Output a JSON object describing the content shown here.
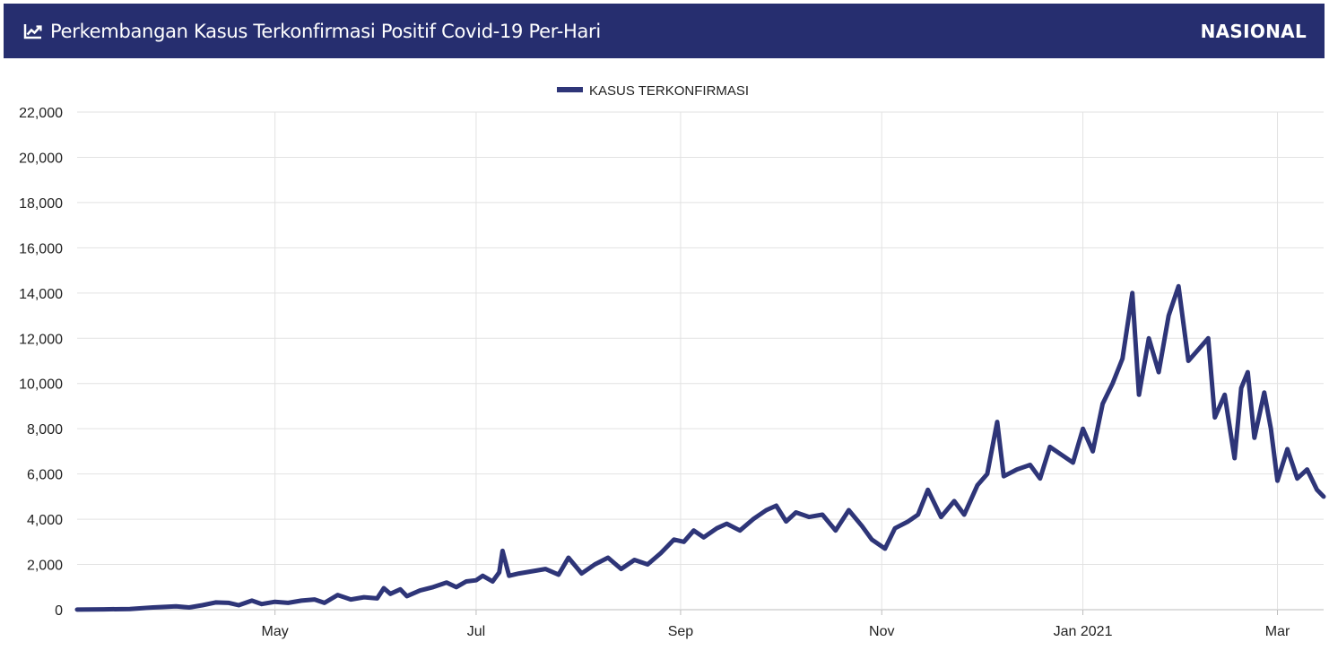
{
  "header": {
    "title": "Perkembangan Kasus Terkonfirmasi Positif Covid-19 Per-Hari",
    "scope": "NASIONAL",
    "icon": "line-chart-icon"
  },
  "chart_data": {
    "type": "line",
    "title": "Perkembangan Kasus Terkonfirmasi Positif Covid-19 Per-Hari",
    "xlabel": "",
    "ylabel": "",
    "legend_position": "top-center",
    "grid": true,
    "series_color": "#2e3578",
    "x_range": [
      "2020-03-02",
      "2021-03-15"
    ],
    "ylim": [
      0,
      22000
    ],
    "y_ticks": [
      "0",
      "2,000",
      "4,000",
      "6,000",
      "8,000",
      "10,000",
      "12,000",
      "14,000",
      "16,000",
      "18,000",
      "20,000",
      "22,000"
    ],
    "x_ticks": [
      {
        "date": "2020-05-01",
        "label": "May"
      },
      {
        "date": "2020-07-01",
        "label": "Jul"
      },
      {
        "date": "2020-09-01",
        "label": "Sep"
      },
      {
        "date": "2020-11-01",
        "label": "Nov"
      },
      {
        "date": "2021-01-01",
        "label": "Jan 2021"
      },
      {
        "date": "2021-03-01",
        "label": "Mar"
      }
    ],
    "series": [
      {
        "name": "KASUS TERKONFIRMASI",
        "points": [
          [
            "2020-03-02",
            2
          ],
          [
            "2020-03-10",
            15
          ],
          [
            "2020-03-18",
            30
          ],
          [
            "2020-03-25",
            100
          ],
          [
            "2020-04-01",
            150
          ],
          [
            "2020-04-05",
            100
          ],
          [
            "2020-04-09",
            200
          ],
          [
            "2020-04-13",
            320
          ],
          [
            "2020-04-17",
            300
          ],
          [
            "2020-04-20",
            200
          ],
          [
            "2020-04-24",
            400
          ],
          [
            "2020-04-27",
            250
          ],
          [
            "2020-05-01",
            350
          ],
          [
            "2020-05-05",
            300
          ],
          [
            "2020-05-09",
            400
          ],
          [
            "2020-05-13",
            450
          ],
          [
            "2020-05-16",
            300
          ],
          [
            "2020-05-20",
            650
          ],
          [
            "2020-05-24",
            450
          ],
          [
            "2020-05-28",
            550
          ],
          [
            "2020-06-01",
            500
          ],
          [
            "2020-06-03",
            950
          ],
          [
            "2020-06-05",
            700
          ],
          [
            "2020-06-08",
            900
          ],
          [
            "2020-06-10",
            600
          ],
          [
            "2020-06-14",
            850
          ],
          [
            "2020-06-18",
            1000
          ],
          [
            "2020-06-22",
            1200
          ],
          [
            "2020-06-25",
            1000
          ],
          [
            "2020-06-28",
            1250
          ],
          [
            "2020-07-01",
            1300
          ],
          [
            "2020-07-03",
            1500
          ],
          [
            "2020-07-06",
            1250
          ],
          [
            "2020-07-08",
            1650
          ],
          [
            "2020-07-09",
            2600
          ],
          [
            "2020-07-11",
            1500
          ],
          [
            "2020-07-14",
            1600
          ],
          [
            "2020-07-18",
            1700
          ],
          [
            "2020-07-22",
            1800
          ],
          [
            "2020-07-26",
            1550
          ],
          [
            "2020-07-29",
            2300
          ],
          [
            "2020-08-02",
            1600
          ],
          [
            "2020-08-06",
            2000
          ],
          [
            "2020-08-10",
            2300
          ],
          [
            "2020-08-14",
            1800
          ],
          [
            "2020-08-18",
            2200
          ],
          [
            "2020-08-22",
            2000
          ],
          [
            "2020-08-26",
            2500
          ],
          [
            "2020-08-30",
            3100
          ],
          [
            "2020-09-02",
            3000
          ],
          [
            "2020-09-05",
            3500
          ],
          [
            "2020-09-08",
            3200
          ],
          [
            "2020-09-12",
            3600
          ],
          [
            "2020-09-15",
            3800
          ],
          [
            "2020-09-19",
            3500
          ],
          [
            "2020-09-23",
            4000
          ],
          [
            "2020-09-27",
            4400
          ],
          [
            "2020-09-30",
            4600
          ],
          [
            "2020-10-03",
            3900
          ],
          [
            "2020-10-06",
            4300
          ],
          [
            "2020-10-10",
            4100
          ],
          [
            "2020-10-14",
            4200
          ],
          [
            "2020-10-18",
            3500
          ],
          [
            "2020-10-22",
            4400
          ],
          [
            "2020-10-26",
            3700
          ],
          [
            "2020-10-29",
            3100
          ],
          [
            "2020-11-02",
            2700
          ],
          [
            "2020-11-05",
            3600
          ],
          [
            "2020-11-09",
            3900
          ],
          [
            "2020-11-12",
            4200
          ],
          [
            "2020-11-15",
            5300
          ],
          [
            "2020-11-19",
            4100
          ],
          [
            "2020-11-23",
            4800
          ],
          [
            "2020-11-26",
            4200
          ],
          [
            "2020-11-30",
            5500
          ],
          [
            "2020-12-03",
            6000
          ],
          [
            "2020-12-06",
            8300
          ],
          [
            "2020-12-08",
            5900
          ],
          [
            "2020-12-12",
            6200
          ],
          [
            "2020-12-16",
            6400
          ],
          [
            "2020-12-19",
            5800
          ],
          [
            "2020-12-22",
            7200
          ],
          [
            "2020-12-25",
            6900
          ],
          [
            "2020-12-29",
            6500
          ],
          [
            "2021-01-01",
            8000
          ],
          [
            "2021-01-04",
            7000
          ],
          [
            "2021-01-07",
            9100
          ],
          [
            "2021-01-10",
            10000
          ],
          [
            "2021-01-13",
            11100
          ],
          [
            "2021-01-16",
            14000
          ],
          [
            "2021-01-18",
            9500
          ],
          [
            "2021-01-21",
            12000
          ],
          [
            "2021-01-24",
            10500
          ],
          [
            "2021-01-27",
            13000
          ],
          [
            "2021-01-30",
            14300
          ],
          [
            "2021-02-02",
            11000
          ],
          [
            "2021-02-05",
            11500
          ],
          [
            "2021-02-08",
            12000
          ],
          [
            "2021-02-10",
            8500
          ],
          [
            "2021-02-13",
            9500
          ],
          [
            "2021-02-16",
            6700
          ],
          [
            "2021-02-18",
            9800
          ],
          [
            "2021-02-20",
            10500
          ],
          [
            "2021-02-22",
            7600
          ],
          [
            "2021-02-25",
            9600
          ],
          [
            "2021-02-27",
            8000
          ],
          [
            "2021-03-01",
            5700
          ],
          [
            "2021-03-04",
            7100
          ],
          [
            "2021-03-07",
            5800
          ],
          [
            "2021-03-10",
            6200
          ],
          [
            "2021-03-13",
            5300
          ],
          [
            "2021-03-15",
            5000
          ]
        ]
      }
    ]
  }
}
